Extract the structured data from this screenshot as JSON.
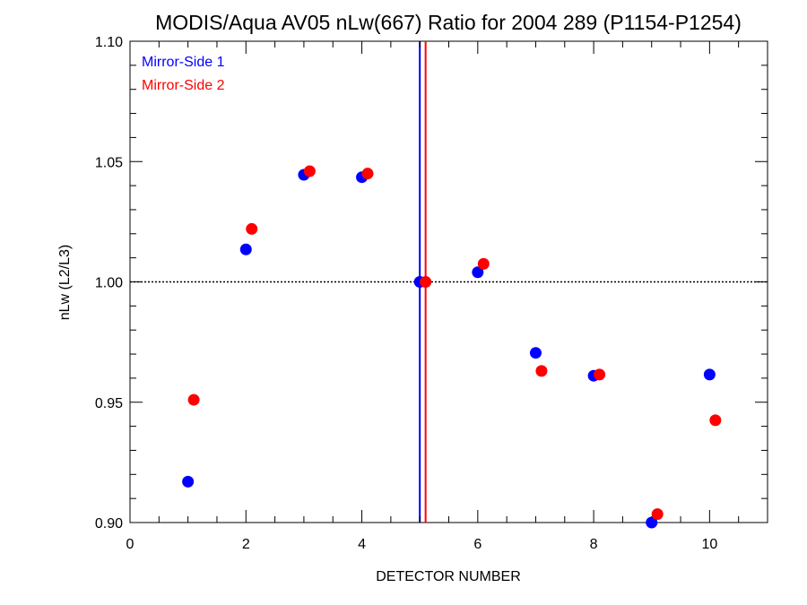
{
  "chart_data": {
    "type": "scatter",
    "title": "MODIS/Aqua AV05 nLw(667) Ratio for 2004 289 (P1154-P1254)",
    "xlabel": "DETECTOR NUMBER",
    "ylabel": "nLw (L2/L3)",
    "xlim": [
      0,
      11
    ],
    "ylim": [
      0.9,
      1.1
    ],
    "xticks": [
      "0",
      "2",
      "4",
      "6",
      "8",
      "10"
    ],
    "yticks": [
      "0.90",
      "0.95",
      "1.00",
      "1.05",
      "1.10"
    ],
    "reference_line_y": 1.0,
    "series": [
      {
        "name": "Mirror-Side 1",
        "color": "#0000ff",
        "marker": "circle",
        "vertical_line_x": 5.0,
        "x": [
          1,
          2,
          3,
          4,
          5,
          6,
          7,
          8,
          9,
          10
        ],
        "y": [
          0.917,
          1.0135,
          1.0445,
          1.0435,
          1.0,
          1.004,
          0.9705,
          0.961,
          0.9,
          0.9615
        ]
      },
      {
        "name": "Mirror-Side 2",
        "color": "#ff0000",
        "marker": "circle",
        "vertical_line_x": 5.1,
        "x": [
          1.1,
          2.1,
          3.1,
          4.1,
          5.1,
          6.1,
          7.1,
          8.1,
          9.1,
          10.1
        ],
        "y": [
          0.951,
          1.022,
          1.046,
          1.045,
          1.0,
          1.0075,
          0.963,
          0.9615,
          0.9035,
          0.9425
        ]
      }
    ],
    "legend_position": "top-left",
    "grid": false
  }
}
